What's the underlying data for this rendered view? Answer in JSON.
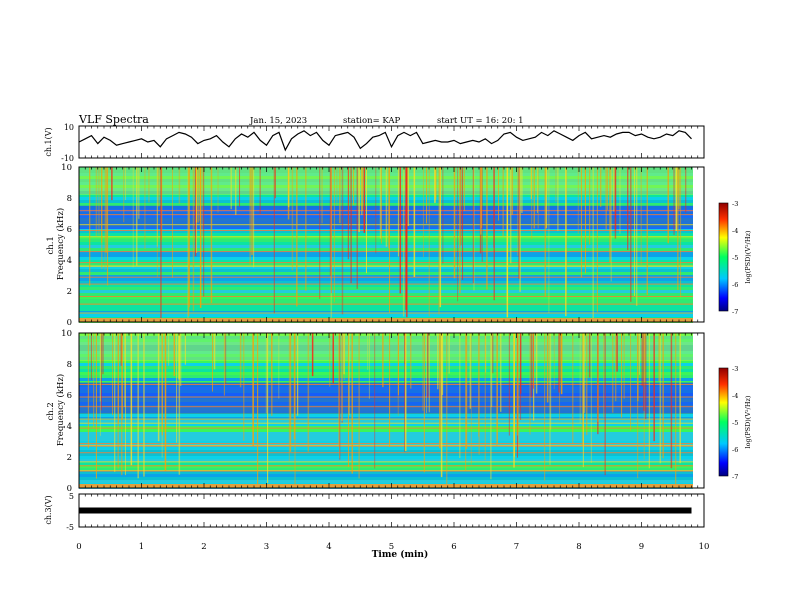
{
  "header": {
    "title": "VLF Spectra",
    "date": "Jan. 15, 2023",
    "station": "station= KAP",
    "start_ut": "start UT =   16: 20: 1"
  },
  "chart_data": [
    {
      "type": "line",
      "name": "ch1-waveform",
      "ylabel": "ch.1(V)",
      "ylim": [
        -10,
        10
      ],
      "yticks": [
        "10",
        "-10"
      ],
      "xlim": [
        0,
        10
      ],
      "trace": {
        "x": [
          0,
          0.1,
          0.2,
          0.3,
          0.4,
          0.5,
          0.6,
          0.7,
          0.8,
          0.9,
          1.0,
          1.1,
          1.2,
          1.3,
          1.4,
          1.5,
          1.6,
          1.7,
          1.8,
          1.9,
          2.0,
          2.1,
          2.2,
          2.3,
          2.4,
          2.5,
          2.6,
          2.7,
          2.8,
          2.9,
          3.0,
          3.1,
          3.2,
          3.3,
          3.4,
          3.5,
          3.6,
          3.7,
          3.8,
          3.9,
          4.0,
          4.1,
          4.2,
          4.3,
          4.4,
          4.5,
          4.6,
          4.7,
          4.8,
          4.9,
          5.0,
          5.1,
          5.2,
          5.3,
          5.4,
          5.5,
          5.6,
          5.7,
          5.8,
          5.9,
          6.0,
          6.1,
          6.2,
          6.3,
          6.4,
          6.5,
          6.6,
          6.7,
          6.8,
          6.9,
          7.0,
          7.1,
          7.2,
          7.3,
          7.4,
          7.5,
          7.6,
          7.7,
          7.8,
          7.9,
          8.0,
          8.1,
          8.2,
          8.3,
          8.4,
          8.5,
          8.6,
          8.7,
          8.8,
          8.9,
          9.0,
          9.1,
          9.2,
          9.3,
          9.4,
          9.5,
          9.6,
          9.7,
          9.8
        ],
        "y": [
          0,
          2,
          4,
          -1,
          3,
          1,
          -2,
          -1,
          0,
          1,
          2,
          0,
          1,
          -3,
          2,
          4,
          6,
          5,
          3,
          -1,
          1,
          2,
          4,
          0,
          -3,
          2,
          5,
          3,
          6,
          1,
          -2,
          4,
          6,
          -5,
          2,
          5,
          7,
          4,
          6,
          1,
          -2,
          4,
          5,
          6,
          3,
          -4,
          -1,
          3,
          4,
          6,
          -3,
          4,
          6,
          4,
          6,
          -1,
          0,
          1,
          0,
          0,
          1,
          -1,
          0,
          1,
          0,
          2,
          -1,
          1,
          5,
          6,
          3,
          1,
          2,
          3,
          6,
          4,
          7,
          5,
          3,
          1,
          4,
          6,
          2,
          3,
          4,
          3,
          5,
          6,
          6,
          4,
          5,
          3,
          2,
          3,
          5,
          4,
          7,
          6,
          2
        ]
      }
    },
    {
      "type": "heatmap",
      "name": "ch1-spectrogram",
      "ylabel": "ch.1\nFrequency (kHz)",
      "ylim": [
        0,
        10
      ],
      "yticks": [
        "10",
        "8",
        "6",
        "4",
        "2",
        "0"
      ],
      "xlim": [
        0,
        10
      ],
      "colorbar": {
        "label": "log(PSD)(V²/Hz)",
        "range": [
          -7,
          -3
        ],
        "ticks": [
          "-3",
          "-4",
          "-5",
          "-6",
          "-7"
        ]
      }
    },
    {
      "type": "heatmap",
      "name": "ch2-spectrogram",
      "ylabel": "ch.2\nFrequency (kHz)",
      "ylim": [
        0,
        10
      ],
      "yticks": [
        "10",
        "8",
        "6",
        "4",
        "2",
        "0"
      ],
      "xlim": [
        0,
        10
      ],
      "colorbar": {
        "label": "log(PSD)(V²/Hz)",
        "range": [
          -7,
          -3
        ],
        "ticks": [
          "-3",
          "-4",
          "-5",
          "-6",
          "-7"
        ]
      }
    },
    {
      "type": "line",
      "name": "ch3-waveform",
      "ylabel": "ch.3(V)",
      "ylim": [
        -5,
        5
      ],
      "yticks": [
        "5",
        "-5"
      ],
      "xlim": [
        0,
        10
      ],
      "xlabel": "Time (min)",
      "xticks": [
        "0",
        "1",
        "2",
        "3",
        "4",
        "5",
        "6",
        "7",
        "8",
        "9",
        "10"
      ],
      "trace": {
        "x": [
          0,
          9.8
        ],
        "y": [
          0,
          0
        ]
      }
    }
  ]
}
